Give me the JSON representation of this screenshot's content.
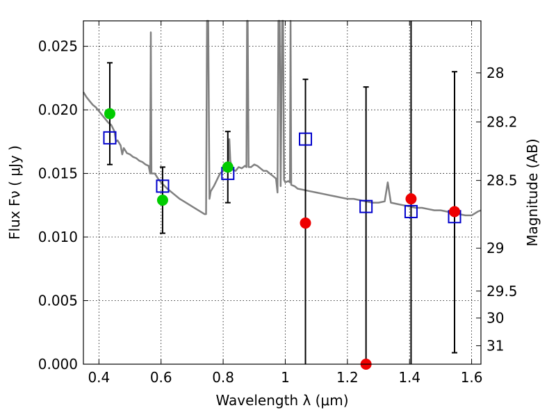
{
  "chart_data": {
    "type": "scatter",
    "title": "",
    "xlabel": "Wavelength  λ (μm)",
    "ylabel": "Flux  Fν  ( μJy )",
    "ylabel_right": "Magnitude (AB)",
    "xlim": [
      0.35,
      1.63
    ],
    "ylim": [
      0.0,
      0.027
    ],
    "grid": true,
    "legend": "none",
    "x_ticks": [
      "0.4",
      "0.6",
      "0.8",
      "1",
      "1.2",
      "1.4",
      "1.6"
    ],
    "x_tick_values": [
      0.4,
      0.6,
      0.8,
      1.0,
      1.2,
      1.4,
      1.6
    ],
    "y_ticks": [
      "0.000",
      "0.005",
      "0.010",
      "0.015",
      "0.020",
      "0.025"
    ],
    "y_tick_values": [
      0.0,
      0.005,
      0.01,
      0.015,
      0.02,
      0.025
    ],
    "right_ticks": [
      {
        "label": "28",
        "flux": 0.02291
      },
      {
        "label": "28.2",
        "flux": 0.01905
      },
      {
        "label": "28.5",
        "flux": 0.01445
      },
      {
        "label": "29",
        "flux": 0.00912
      },
      {
        "label": "29.5",
        "flux": 0.00575
      },
      {
        "label": "30",
        "flux": 0.00363
      },
      {
        "label": "31",
        "flux": 0.00145
      }
    ],
    "series": [
      {
        "kind": "spectrum-line",
        "color": "#808080",
        "points": [
          [
            0.35,
            0.0214
          ],
          [
            0.36,
            0.021
          ],
          [
            0.37,
            0.0207
          ],
          [
            0.38,
            0.0204
          ],
          [
            0.39,
            0.0202
          ],
          [
            0.4,
            0.0199
          ],
          [
            0.41,
            0.0196
          ],
          [
            0.42,
            0.0193
          ],
          [
            0.43,
            0.019
          ],
          [
            0.44,
            0.0188
          ],
          [
            0.45,
            0.0183
          ],
          [
            0.455,
            0.0175
          ],
          [
            0.46,
            0.0176
          ],
          [
            0.47,
            0.0172
          ],
          [
            0.475,
            0.0165
          ],
          [
            0.48,
            0.017
          ],
          [
            0.49,
            0.0166
          ],
          [
            0.5,
            0.0165
          ],
          [
            0.51,
            0.0163
          ],
          [
            0.52,
            0.0162
          ],
          [
            0.53,
            0.016
          ],
          [
            0.54,
            0.0159
          ],
          [
            0.55,
            0.0157
          ],
          [
            0.56,
            0.0156
          ],
          [
            0.565,
            0.015
          ],
          [
            0.567,
            0.0261
          ],
          [
            0.569,
            0.015
          ],
          [
            0.58,
            0.015
          ],
          [
            0.59,
            0.0146
          ],
          [
            0.6,
            0.0143
          ],
          [
            0.62,
            0.0138
          ],
          [
            0.64,
            0.0134
          ],
          [
            0.66,
            0.013
          ],
          [
            0.68,
            0.0127
          ],
          [
            0.7,
            0.0124
          ],
          [
            0.72,
            0.0121
          ],
          [
            0.74,
            0.0118
          ],
          [
            0.745,
            0.0118
          ],
          [
            0.748,
            0.027
          ],
          [
            0.752,
            0.027
          ],
          [
            0.756,
            0.013
          ],
          [
            0.76,
            0.0136
          ],
          [
            0.77,
            0.014
          ],
          [
            0.78,
            0.0145
          ],
          [
            0.79,
            0.015
          ],
          [
            0.8,
            0.0152
          ],
          [
            0.81,
            0.0154
          ],
          [
            0.815,
            0.0151
          ],
          [
            0.818,
            0.0165
          ],
          [
            0.82,
            0.0177
          ],
          [
            0.823,
            0.016
          ],
          [
            0.83,
            0.0153
          ],
          [
            0.84,
            0.0152
          ],
          [
            0.85,
            0.0155
          ],
          [
            0.86,
            0.0154
          ],
          [
            0.87,
            0.0156
          ],
          [
            0.875,
            0.0155
          ],
          [
            0.877,
            0.027
          ],
          [
            0.879,
            0.027
          ],
          [
            0.882,
            0.0155
          ],
          [
            0.89,
            0.0155
          ],
          [
            0.9,
            0.0157
          ],
          [
            0.91,
            0.0156
          ],
          [
            0.92,
            0.0154
          ],
          [
            0.93,
            0.0152
          ],
          [
            0.94,
            0.0152
          ],
          [
            0.95,
            0.015
          ],
          [
            0.96,
            0.0148
          ],
          [
            0.97,
            0.0146
          ],
          [
            0.975,
            0.0135
          ],
          [
            0.978,
            0.027
          ],
          [
            0.982,
            0.027
          ],
          [
            0.985,
            0.014
          ],
          [
            0.99,
            0.027
          ],
          [
            0.993,
            0.027
          ],
          [
            0.996,
            0.0145
          ],
          [
            1.0,
            0.0143
          ],
          [
            1.01,
            0.0144
          ],
          [
            1.015,
            0.0143
          ],
          [
            1.017,
            0.027
          ],
          [
            1.019,
            0.0141
          ],
          [
            1.03,
            0.014
          ],
          [
            1.04,
            0.0138
          ],
          [
            1.06,
            0.0137
          ],
          [
            1.08,
            0.0136
          ],
          [
            1.1,
            0.0135
          ],
          [
            1.12,
            0.0134
          ],
          [
            1.14,
            0.0133
          ],
          [
            1.16,
            0.0132
          ],
          [
            1.18,
            0.0131
          ],
          [
            1.2,
            0.013
          ],
          [
            1.22,
            0.013
          ],
          [
            1.24,
            0.0129
          ],
          [
            1.26,
            0.0128
          ],
          [
            1.28,
            0.0127
          ],
          [
            1.3,
            0.0127
          ],
          [
            1.32,
            0.0128
          ],
          [
            1.33,
            0.0143
          ],
          [
            1.34,
            0.0127
          ],
          [
            1.36,
            0.0126
          ],
          [
            1.38,
            0.0125
          ],
          [
            1.4,
            0.0124
          ],
          [
            1.42,
            0.0123
          ],
          [
            1.44,
            0.0123
          ],
          [
            1.46,
            0.0122
          ],
          [
            1.48,
            0.0121
          ],
          [
            1.5,
            0.0121
          ],
          [
            1.52,
            0.012
          ],
          [
            1.54,
            0.0119
          ],
          [
            1.56,
            0.0118
          ],
          [
            1.58,
            0.0117
          ],
          [
            1.6,
            0.0117
          ],
          [
            1.62,
            0.012
          ],
          [
            1.63,
            0.0121
          ]
        ]
      },
      {
        "kind": "markers-open-square",
        "color": "#0000cc",
        "x": [
          0.435,
          0.605,
          0.815,
          1.065,
          1.26,
          1.405,
          1.545
        ],
        "y": [
          0.0178,
          0.014,
          0.015,
          0.0177,
          0.0124,
          0.012,
          0.0116
        ]
      },
      {
        "kind": "markers-filled-circle",
        "color": "#00cc00",
        "x": [
          0.435,
          0.605,
          0.815
        ],
        "y": [
          0.0197,
          0.0129,
          0.0155
        ]
      },
      {
        "kind": "markers-filled-circle",
        "color": "#ee0000",
        "x": [
          1.065,
          1.26,
          1.405,
          1.545
        ],
        "y": [
          0.0111,
          0.0,
          0.013,
          0.012
        ]
      }
    ],
    "errorbars": [
      {
        "x": 0.435,
        "low": 0.0157,
        "high": 0.0237
      },
      {
        "x": 0.605,
        "low": 0.0103,
        "high": 0.0155
      },
      {
        "x": 0.815,
        "low": 0.0127,
        "high": 0.0183
      },
      {
        "x": 1.065,
        "low": 0.0,
        "high": 0.0224
      },
      {
        "x": 1.26,
        "low": 0.0,
        "high": 0.0218
      },
      {
        "x": 1.405,
        "low": 0.0,
        "high": 0.027
      },
      {
        "x": 1.545,
        "low": 0.0009,
        "high": 0.023
      }
    ]
  }
}
